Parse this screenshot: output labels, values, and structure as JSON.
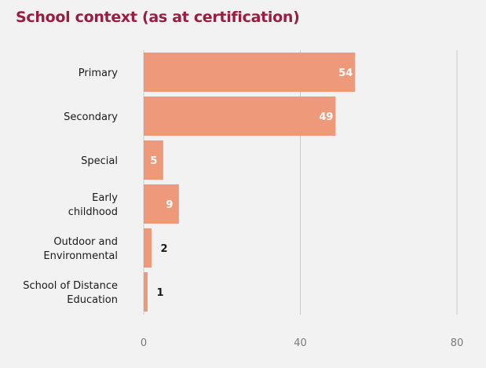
{
  "title": "School context (as at certification)",
  "colors": {
    "title": "#9b1c3f",
    "bar": "#ee9a7a",
    "gridline": "#c8c8c8",
    "label_inside": "#ffffff",
    "label_outside": "#1a1a1a",
    "background": "#f2f2f2"
  },
  "chart_data": {
    "type": "bar",
    "orientation": "horizontal",
    "title": "School context (as at certification)",
    "categories": [
      [
        "Primary"
      ],
      [
        "Secondary"
      ],
      [
        "Special"
      ],
      [
        "Early",
        "childhood"
      ],
      [
        "Outdoor and",
        "Environmental"
      ],
      [
        "School of Distance",
        "Education"
      ]
    ],
    "values": [
      54,
      49,
      5,
      9,
      2,
      1
    ],
    "data_labels": [
      "54",
      "49",
      "5",
      "9",
      "2",
      "1"
    ],
    "xlim": [
      0,
      80
    ],
    "xticks": [
      0,
      40,
      80
    ],
    "xtick_labels": [
      "0",
      "40",
      "80"
    ],
    "grid": true,
    "legend": "none"
  }
}
